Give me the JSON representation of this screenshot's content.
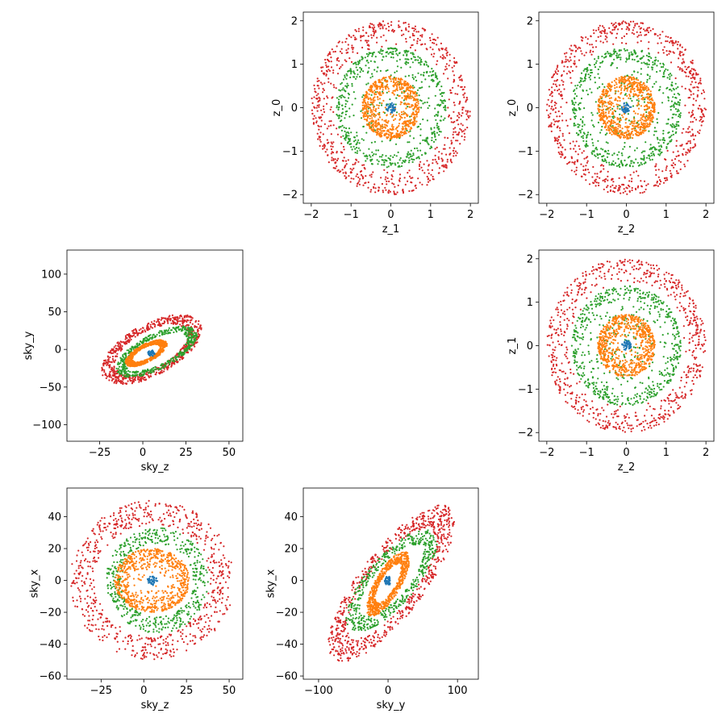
{
  "colors": {
    "blue": "#1f77b4",
    "orange": "#ff7f0e",
    "green": "#2ca02c",
    "red": "#d62728"
  },
  "chart_data": [
    {
      "type": "scatter",
      "id": "z1_z0",
      "xlabel": "z_1",
      "ylabel": "z_0",
      "xlim": [
        -2.2,
        2.2
      ],
      "ylim": [
        -2.2,
        2.2
      ],
      "xticks": [
        -2,
        -1,
        0,
        1,
        2
      ],
      "yticks": [
        -2,
        -1,
        0,
        1,
        2
      ],
      "xtick_labels": [
        "−2",
        "−1",
        "0",
        "1",
        "2"
      ],
      "ytick_labels": [
        "−2",
        "−1",
        "0",
        "1",
        "2"
      ],
      "shapes": [
        {
          "kind": "ring",
          "color": "red",
          "cx": 0,
          "cy": 0,
          "rmin": 1.4,
          "rmax": 2.0,
          "n": 700
        },
        {
          "kind": "ring",
          "color": "green",
          "cx": 0,
          "cy": 0,
          "rmin": 1.0,
          "rmax": 1.38,
          "n": 500
        },
        {
          "kind": "ring",
          "color": "green",
          "cx": 0,
          "cy": 0,
          "rmin": 0.0,
          "rmax": 1.0,
          "n": 150
        },
        {
          "kind": "disk",
          "color": "orange",
          "cx": 0,
          "cy": 0,
          "rx": 0.72,
          "ry": 0.72,
          "n": 700,
          "dense_edge": true
        },
        {
          "kind": "disk",
          "color": "blue",
          "cx": 0,
          "cy": 0,
          "rx": 0.12,
          "ry": 0.12,
          "n": 40,
          "dense_edge": false
        }
      ]
    },
    {
      "type": "scatter",
      "id": "z2_z0",
      "xlabel": "z_2",
      "ylabel": "z_0",
      "xlim": [
        -2.2,
        2.2
      ],
      "ylim": [
        -2.2,
        2.2
      ],
      "xticks": [
        -2,
        -1,
        0,
        1,
        2
      ],
      "yticks": [
        -2,
        -1,
        0,
        1,
        2
      ],
      "xtick_labels": [
        "−2",
        "−1",
        "0",
        "1",
        "2"
      ],
      "ytick_labels": [
        "−2",
        "−1",
        "0",
        "1",
        "2"
      ],
      "shapes": [
        {
          "kind": "ring",
          "color": "red",
          "cx": 0,
          "cy": 0,
          "rmin": 1.4,
          "rmax": 2.0,
          "n": 700
        },
        {
          "kind": "ring",
          "color": "green",
          "cx": 0,
          "cy": 0,
          "rmin": 1.0,
          "rmax": 1.38,
          "n": 500
        },
        {
          "kind": "ring",
          "color": "green",
          "cx": 0,
          "cy": 0,
          "rmin": 0.0,
          "rmax": 1.0,
          "n": 150
        },
        {
          "kind": "disk",
          "color": "orange",
          "cx": 0,
          "cy": 0,
          "rx": 0.72,
          "ry": 0.72,
          "n": 700,
          "dense_edge": true
        },
        {
          "kind": "disk",
          "color": "blue",
          "cx": 0,
          "cy": 0,
          "rx": 0.12,
          "ry": 0.12,
          "n": 40,
          "dense_edge": false
        }
      ]
    },
    {
      "type": "scatter",
      "id": "skyz_skyy",
      "xlabel": "sky_z",
      "ylabel": "sky_y",
      "xlim": [
        -44,
        58
      ],
      "ylim": [
        -122,
        132
      ],
      "xticks": [
        -25,
        0,
        25,
        50
      ],
      "yticks": [
        -100,
        -50,
        0,
        50,
        100
      ],
      "xtick_labels": [
        "−25",
        "0",
        "25",
        "50"
      ],
      "ytick_labels": [
        "−100",
        "−50",
        "0",
        "50",
        "100"
      ],
      "shapes": [
        {
          "kind": "tilted_ring",
          "color": "red",
          "cx": 5,
          "cy": 0,
          "a": 50,
          "b": 22,
          "angle": 65,
          "thick": 0.28,
          "n": 700
        },
        {
          "kind": "tilted_ring",
          "color": "green",
          "cx": 8,
          "cy": -3,
          "a": 38,
          "b": 16,
          "angle": 60,
          "thick": 0.25,
          "n": 500
        },
        {
          "kind": "tilted_ring",
          "color": "orange",
          "cx": 2,
          "cy": -5,
          "a": 20,
          "b": 8,
          "angle": 60,
          "thick": 0.35,
          "n": 700
        },
        {
          "kind": "disk",
          "color": "blue",
          "cx": 5,
          "cy": -5,
          "rx": 2,
          "ry": 4,
          "n": 40,
          "dense_edge": false
        }
      ]
    },
    {
      "type": "scatter",
      "id": "z2_z1",
      "xlabel": "z_2",
      "ylabel": "z_1",
      "xlim": [
        -2.2,
        2.2
      ],
      "ylim": [
        -2.2,
        2.2
      ],
      "xticks": [
        -2,
        -1,
        0,
        1,
        2
      ],
      "yticks": [
        -2,
        -1,
        0,
        1,
        2
      ],
      "xtick_labels": [
        "−2",
        "−1",
        "0",
        "1",
        "2"
      ],
      "ytick_labels": [
        "−2",
        "−1",
        "0",
        "1",
        "2"
      ],
      "shapes": [
        {
          "kind": "ring",
          "color": "red",
          "cx": 0,
          "cy": 0,
          "rmin": 1.4,
          "rmax": 2.0,
          "n": 700
        },
        {
          "kind": "ring",
          "color": "green",
          "cx": 0,
          "cy": 0,
          "rmin": 1.0,
          "rmax": 1.38,
          "n": 500
        },
        {
          "kind": "ring",
          "color": "green",
          "cx": 0,
          "cy": 0,
          "rmin": 0.0,
          "rmax": 1.0,
          "n": 150
        },
        {
          "kind": "disk",
          "color": "orange",
          "cx": 0,
          "cy": 0,
          "rx": 0.72,
          "ry": 0.72,
          "n": 700,
          "dense_edge": true
        },
        {
          "kind": "disk",
          "color": "blue",
          "cx": 0,
          "cy": 0,
          "rx": 0.12,
          "ry": 0.12,
          "n": 40,
          "dense_edge": false
        }
      ]
    },
    {
      "type": "scatter",
      "id": "skyz_skyx",
      "xlabel": "sky_z",
      "ylabel": "sky_x",
      "xlim": [
        -45,
        58
      ],
      "ylim": [
        -62,
        58
      ],
      "xticks": [
        -25,
        0,
        25,
        50
      ],
      "yticks": [
        -60,
        -40,
        -20,
        0,
        20,
        40
      ],
      "xtick_labels": [
        "−25",
        "0",
        "25",
        "50"
      ],
      "ytick_labels": [
        "−60",
        "−40",
        "−20",
        "0",
        "20",
        "40"
      ],
      "shapes": [
        {
          "kind": "tilted_ring",
          "color": "red",
          "cx": 5,
          "cy": 0,
          "a": 48,
          "b": 50,
          "angle": 0,
          "thick": 0.3,
          "n": 700
        },
        {
          "kind": "tilted_ring",
          "color": "green",
          "cx": 8,
          "cy": 0,
          "a": 30,
          "b": 33,
          "angle": 0,
          "thick": 0.3,
          "n": 500
        },
        {
          "kind": "disk",
          "color": "orange",
          "cx": 5,
          "cy": 0,
          "rx": 22,
          "ry": 20,
          "n": 700,
          "dense_edge": true
        },
        {
          "kind": "disk",
          "color": "blue",
          "cx": 5,
          "cy": 0,
          "rx": 3,
          "ry": 3,
          "n": 40,
          "dense_edge": false
        }
      ]
    },
    {
      "type": "scatter",
      "id": "skyy_skyx",
      "xlabel": "sky_y",
      "ylabel": "sky_x",
      "xlim": [
        -122,
        130
      ],
      "ylim": [
        -62,
        58
      ],
      "xticks": [
        -100,
        0,
        100
      ],
      "yticks": [
        -60,
        -40,
        -20,
        0,
        20,
        40
      ],
      "xtick_labels": [
        "−100",
        "0",
        "100"
      ],
      "ytick_labels": [
        "−60",
        "−40",
        "−20",
        "0",
        "20",
        "40"
      ],
      "shapes": [
        {
          "kind": "tilted_ring",
          "color": "red",
          "cx": 5,
          "cy": -2,
          "a": 100,
          "b": 28,
          "angle": 25,
          "thick": 0.3,
          "n": 700
        },
        {
          "kind": "tilted_ring",
          "color": "green",
          "cx": 5,
          "cy": 0,
          "a": 70,
          "b": 20,
          "angle": 22,
          "thick": 0.3,
          "n": 500
        },
        {
          "kind": "tilted_ring",
          "color": "orange",
          "cx": 0,
          "cy": -2,
          "a": 35,
          "b": 12,
          "angle": 30,
          "thick": 0.4,
          "n": 700
        },
        {
          "kind": "disk",
          "color": "blue",
          "cx": 0,
          "cy": 0,
          "rx": 5,
          "ry": 3,
          "n": 40,
          "dense_edge": false
        }
      ]
    }
  ]
}
